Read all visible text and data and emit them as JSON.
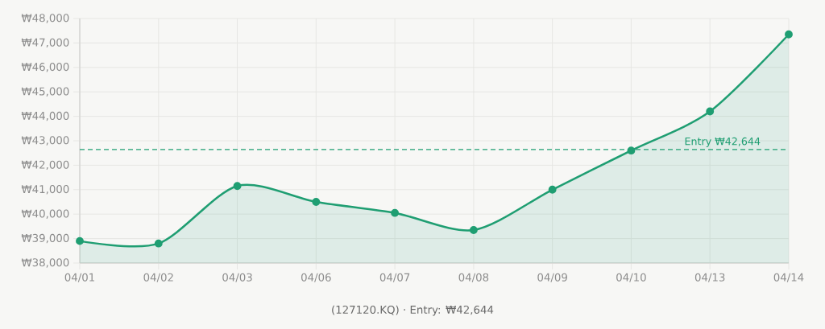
{
  "chart_data": {
    "type": "area",
    "xlabel": "(127120.KQ) · Entry: ₩42,644",
    "categories": [
      "04/01",
      "04/02",
      "04/03",
      "04/06",
      "04/07",
      "04/08",
      "04/09",
      "04/10",
      "04/13",
      "04/14"
    ],
    "values": [
      38900,
      38800,
      41150,
      40500,
      40050,
      39350,
      41000,
      42600,
      44200,
      47350
    ],
    "color": "#1f9e72",
    "ylim": [
      38000,
      48000
    ],
    "yticks": [
      {
        "value": 38000,
        "label": "₩38,000"
      },
      {
        "value": 39000,
        "label": "₩39,000"
      },
      {
        "value": 40000,
        "label": "₩40,000"
      },
      {
        "value": 41000,
        "label": "₩41,000"
      },
      {
        "value": 42000,
        "label": "₩42,000"
      },
      {
        "value": 43000,
        "label": "₩43,000"
      },
      {
        "value": 44000,
        "label": "₩44,000"
      },
      {
        "value": 45000,
        "label": "₩45,000"
      },
      {
        "value": 46000,
        "label": "₩46,000"
      },
      {
        "value": 47000,
        "label": "₩47,000"
      },
      {
        "value": 48000,
        "label": "₩48,000"
      }
    ],
    "grid": true,
    "marker": "circle",
    "line_style": "solid",
    "ref_lines": [
      {
        "axis": "y",
        "value": 42644,
        "label": "Entry ₩42,644",
        "color": "#1f9e72",
        "line_style": "dashed"
      }
    ]
  }
}
